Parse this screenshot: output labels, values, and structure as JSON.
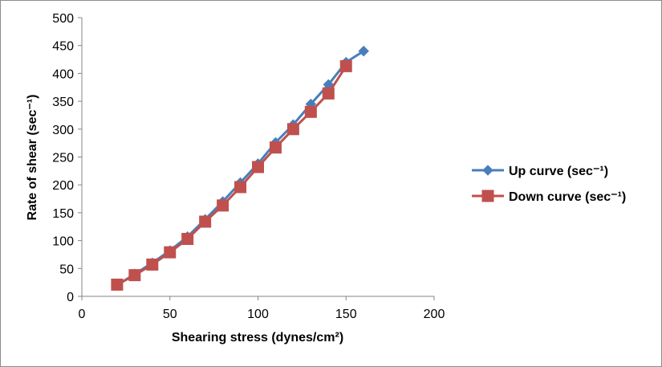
{
  "chart_data": {
    "type": "line",
    "title": "",
    "xlabel": "Shearing stress (dynes/cm²)",
    "ylabel": "Rate of shear (sec⁻¹)",
    "xlim": [
      0,
      200
    ],
    "ylim": [
      0,
      500
    ],
    "xticks": [
      0,
      50,
      100,
      150,
      200
    ],
    "yticks": [
      0,
      50,
      100,
      150,
      200,
      250,
      300,
      350,
      400,
      450,
      500
    ],
    "grid": false,
    "legend": "right",
    "series": [
      {
        "name": "Up curve (sec⁻¹)",
        "color": "#4a7ebb",
        "marker": "diamond",
        "x": [
          20,
          30,
          40,
          50,
          60,
          70,
          80,
          90,
          100,
          110,
          120,
          130,
          140,
          150,
          160
        ],
        "y": [
          20,
          40,
          60,
          82,
          107,
          138,
          170,
          204,
          238,
          276,
          308,
          345,
          380,
          420,
          440
        ]
      },
      {
        "name": "Down curve (sec⁻¹)",
        "color": "#c0504d",
        "marker": "square",
        "x": [
          20,
          30,
          40,
          50,
          60,
          70,
          80,
          90,
          100,
          110,
          120,
          130,
          140,
          150
        ],
        "y": [
          21,
          38,
          57,
          79,
          103,
          134,
          163,
          196,
          232,
          267,
          300,
          331,
          364,
          413
        ]
      }
    ]
  }
}
